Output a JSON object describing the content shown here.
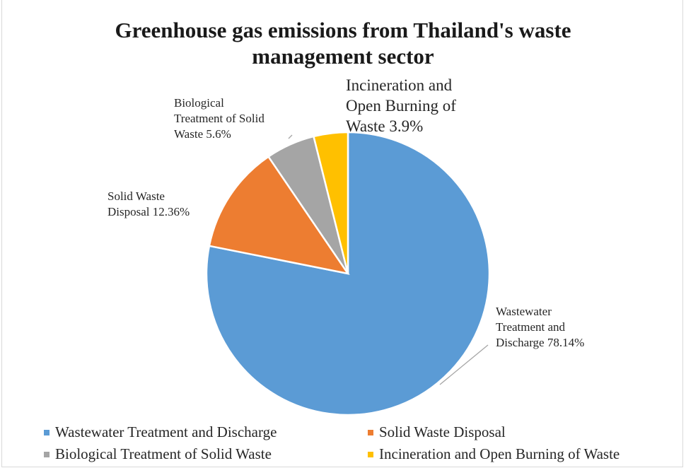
{
  "chart_data": {
    "type": "pie",
    "title": "Greenhouse gas emissions from Thailand's waste management sector",
    "title_lines": [
      "Greenhouse gas emissions from Thailand's waste",
      "management sector"
    ],
    "slices": [
      {
        "name": "Wastewater Treatment and Discharge",
        "value": 78.14,
        "color": "#5b9bd5",
        "label_lines": [
          "Wastewater",
          "Treatment and",
          "Discharge 78.14%"
        ]
      },
      {
        "name": "Solid Waste Disposal",
        "value": 12.36,
        "color": "#ed7d31",
        "label_lines": [
          "Solid Waste",
          "Disposal 12.36%"
        ]
      },
      {
        "name": "Biological Treatment of Solid Waste",
        "value": 5.6,
        "color": "#a5a5a5",
        "label_lines": [
          "Biological",
          "Treatment of Solid",
          "Waste 5.6%"
        ]
      },
      {
        "name": "Incineration and Open Burning of Waste",
        "value": 3.9,
        "color": "#ffc000",
        "label_lines": [
          "Incineration and",
          "Open Burning of",
          "Waste 3.9%"
        ]
      }
    ],
    "legend_position": "bottom"
  }
}
